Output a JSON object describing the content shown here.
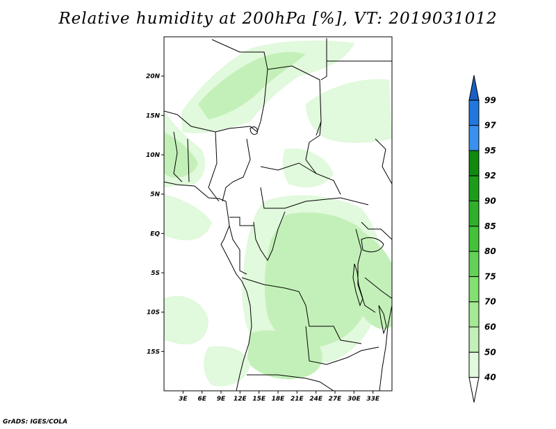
{
  "title": "Relative humidity at 200hPa [%], VT: 2019031012",
  "credit": "GrADS: IGES/COLA",
  "map": {
    "lon_range": [
      0,
      36
    ],
    "lat_range": [
      -20,
      25
    ],
    "lat_ticks": [
      {
        "value": 20,
        "label": "20N"
      },
      {
        "value": 15,
        "label": "15N"
      },
      {
        "value": 10,
        "label": "10N"
      },
      {
        "value": 5,
        "label": "5N"
      },
      {
        "value": 0,
        "label": "EQ"
      },
      {
        "value": -5,
        "label": "5S"
      },
      {
        "value": -10,
        "label": "10S"
      },
      {
        "value": -15,
        "label": "15S"
      }
    ],
    "lon_ticks": [
      {
        "value": 3,
        "label": "3E"
      },
      {
        "value": 6,
        "label": "6E"
      },
      {
        "value": 9,
        "label": "9E"
      },
      {
        "value": 12,
        "label": "12E"
      },
      {
        "value": 15,
        "label": "15E"
      },
      {
        "value": 18,
        "label": "18E"
      },
      {
        "value": 21,
        "label": "21E"
      },
      {
        "value": 24,
        "label": "24E"
      },
      {
        "value": 27,
        "label": "27E"
      },
      {
        "value": 30,
        "label": "30E"
      },
      {
        "value": 33,
        "label": "33E"
      }
    ],
    "border_color": "#000000",
    "humid_colors": [
      "#e1f9dc",
      "#c3f0b8"
    ]
  },
  "colorbar": {
    "levels": [
      {
        "label": "40",
        "color": "#e1f9dc"
      },
      {
        "label": "50",
        "color": "#c3f0b8"
      },
      {
        "label": "60",
        "color": "#a4e993"
      },
      {
        "label": "70",
        "color": "#82df72"
      },
      {
        "label": "75",
        "color": "#63d157"
      },
      {
        "label": "80",
        "color": "#43c23a"
      },
      {
        "label": "85",
        "color": "#2fb02b"
      },
      {
        "label": "90",
        "color": "#1d9c1a"
      },
      {
        "label": "92",
        "color": "#108a0e"
      },
      {
        "label": "95",
        "color": "#3a91ee"
      },
      {
        "label": "97",
        "color": "#2277dd"
      },
      {
        "label": "99",
        "color": "#1a5fc4"
      }
    ],
    "below_color": "#ffffff",
    "top_arrow_color": "#1a5fc4"
  }
}
